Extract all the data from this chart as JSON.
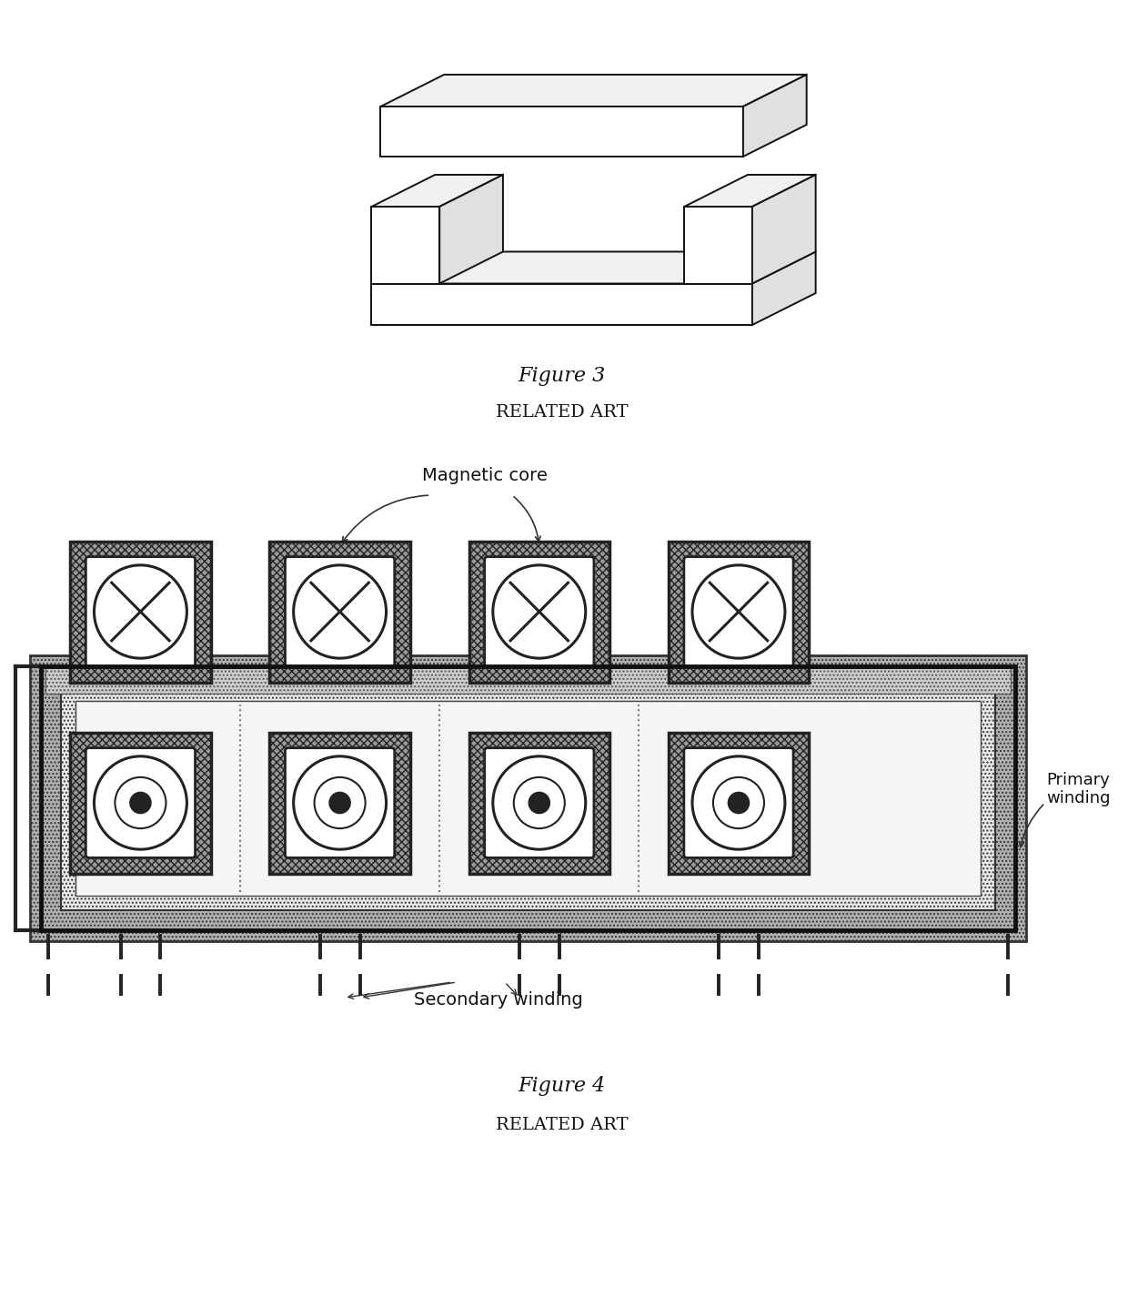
{
  "fig_width": 12.4,
  "fig_height": 14.37,
  "bg_color": "#ffffff",
  "fig3_caption": "Figure 3",
  "fig3_sub": "RELATED ART",
  "fig4_caption": "Figure 4",
  "fig4_sub": "RELATED ART",
  "label_magnetic_core": "Magnetic core",
  "label_primary_winding": "Primary\nwinding",
  "label_secondary_winding": "Secondary winding",
  "n_cells": 4,
  "dark_color": "#222222",
  "mid_color": "#888888",
  "light_color": "#cccccc"
}
